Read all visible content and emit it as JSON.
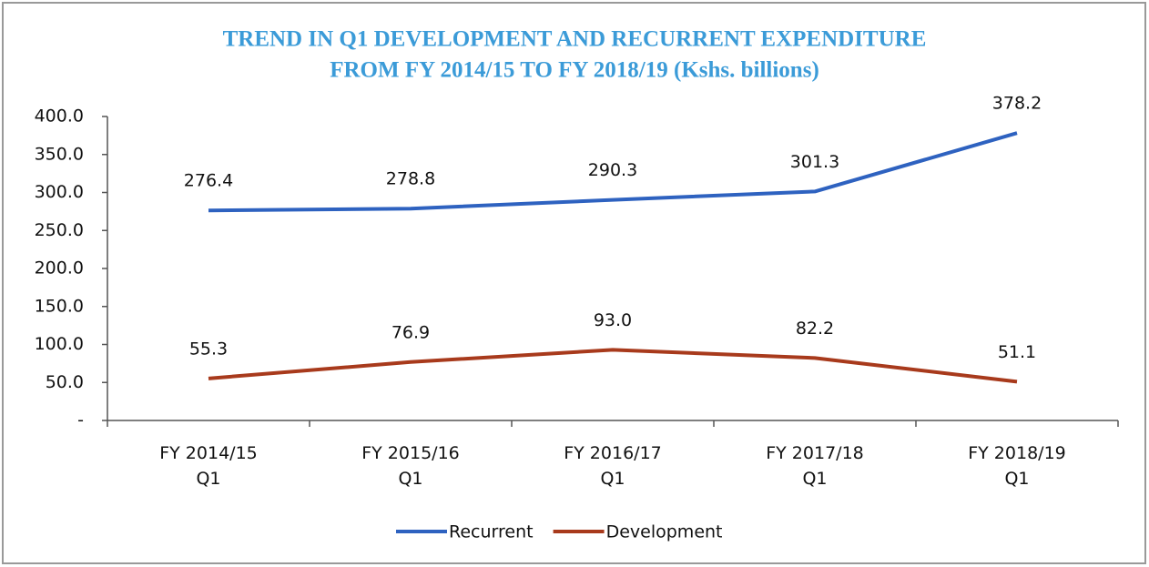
{
  "chart_data": {
    "type": "line",
    "title": [
      "TREND IN Q1 DEVELOPMENT AND RECURRENT EXPENDITURE",
      "FROM  FY 2014/15 TO FY 2018/19 (Kshs. billions)"
    ],
    "categories": [
      "FY 2014/15 Q1",
      "FY 2015/16 Q1",
      "FY 2016/17 Q1",
      "FY 2017/18 Q1",
      "FY 2018/19 Q1"
    ],
    "series": [
      {
        "name": "Recurrent",
        "color": "#2e62c0",
        "values": [
          276.4,
          278.8,
          290.3,
          301.3,
          378.2
        ],
        "value_labels": [
          "276.4",
          "278.8",
          "290.3",
          "301.3",
          "378.2"
        ]
      },
      {
        "name": "Development",
        "color": "#a83a1c",
        "values": [
          55.3,
          76.9,
          93.0,
          82.2,
          51.1
        ],
        "value_labels": [
          "55.3",
          "76.9",
          "93.0",
          "82.2",
          "51.1"
        ]
      }
    ],
    "ylim": [
      0,
      400
    ],
    "yticks": [
      {
        "value": 0,
        "label": "-"
      },
      {
        "value": 50,
        "label": "50.0"
      },
      {
        "value": 100,
        "label": "100.0"
      },
      {
        "value": 150,
        "label": "150.0"
      },
      {
        "value": 200,
        "label": "200.0"
      },
      {
        "value": 250,
        "label": "250.0"
      },
      {
        "value": 300,
        "label": "300.0"
      },
      {
        "value": 350,
        "label": "350.0"
      },
      {
        "value": 400,
        "label": "400.0"
      }
    ],
    "legend": "bottom",
    "grid": false
  }
}
